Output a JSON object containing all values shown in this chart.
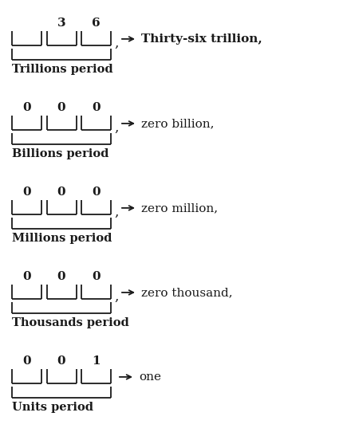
{
  "rows": [
    {
      "digits": [
        "",
        "3",
        "6"
      ],
      "label": "Thirty-six trillion,",
      "period": "Trillions period",
      "label_bold": true,
      "has_comma": true
    },
    {
      "digits": [
        "0",
        "0",
        "0"
      ],
      "label": "zero billion,",
      "period": "Billions period",
      "label_bold": false,
      "has_comma": true
    },
    {
      "digits": [
        "0",
        "0",
        "0"
      ],
      "label": "zero million,",
      "period": "Millions period",
      "label_bold": false,
      "has_comma": true
    },
    {
      "digits": [
        "0",
        "0",
        "0"
      ],
      "label": "zero thousand,",
      "period": "Thousands period",
      "label_bold": false,
      "has_comma": true
    },
    {
      "digits": [
        "0",
        "0",
        "1"
      ],
      "label": "one",
      "period": "Units period",
      "label_bold": false,
      "has_comma": false
    }
  ],
  "bg_color": "#ffffff",
  "text_color": "#1a1a1a",
  "bracket_color": "#1a1a1a",
  "digit_fontsize": 11,
  "label_fontsize": 11,
  "period_fontsize": 10.5
}
